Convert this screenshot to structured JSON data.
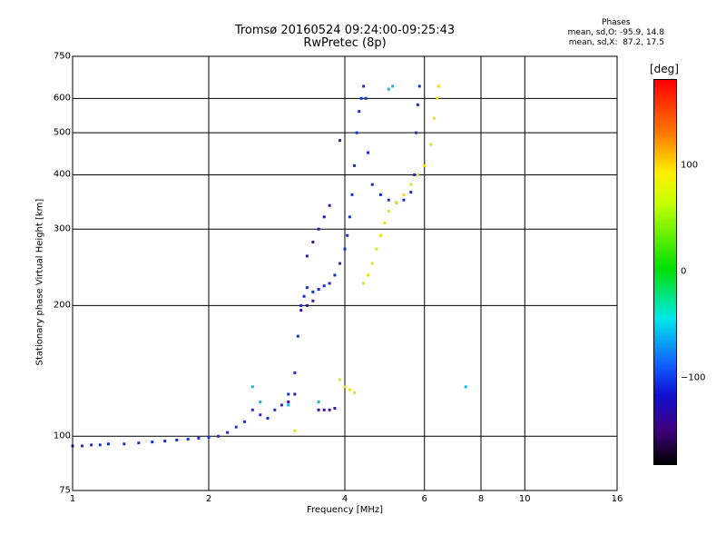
{
  "header": {
    "title": "Tromsø 20160524 09:24:00-09:25:43",
    "subtitle": "RwPretec (8p)"
  },
  "phase_info": {
    "heading": "Phases",
    "line_o": "mean, sd,O: -95.9, 14.8",
    "line_x": "mean, sd,X:  87.2, 17.5"
  },
  "colorbar": {
    "label": "[deg]",
    "ticks": [
      {
        "value": 100,
        "label": "100"
      },
      {
        "value": 0,
        "label": "0"
      },
      {
        "value": -100,
        "label": "−100"
      }
    ],
    "range": [
      -180,
      180
    ]
  },
  "colors": {
    "o_trace": "#1530d8",
    "o_dark": "#3a12a8",
    "x_trace": "#e8e010",
    "cyan": "#10b8e8"
  },
  "chart_data": {
    "type": "scatter",
    "title": "Tromsø 20160524 09:24:00-09:25:43",
    "subtitle": "RwPretec (8p)",
    "xlabel": "Frequency [MHz]",
    "ylabel": "Stationary phase Virtual Height [km]",
    "xscale": "log",
    "yscale": "log",
    "xlim": [
      1,
      16
    ],
    "ylim": [
      75,
      750
    ],
    "grid": true,
    "x_ticks": [
      {
        "value": 1,
        "label": "1"
      },
      {
        "value": 2,
        "label": "2"
      },
      {
        "value": 4,
        "label": "4"
      },
      {
        "value": 6,
        "label": "6"
      },
      {
        "value": 8,
        "label": "8"
      },
      {
        "value": 10,
        "label": "10"
      },
      {
        "value": 16,
        "label": "16"
      }
    ],
    "y_ticks": [
      {
        "value": 750,
        "label": "750"
      },
      {
        "value": 600,
        "label": "600"
      },
      {
        "value": 500,
        "label": "500"
      },
      {
        "value": 400,
        "label": "400"
      },
      {
        "value": 300,
        "label": "300"
      },
      {
        "value": 200,
        "label": "200"
      },
      {
        "value": 100,
        "label": "100"
      },
      {
        "value": 75,
        "label": "75"
      }
    ],
    "x_gridlines": [
      2,
      4,
      6,
      8,
      10
    ],
    "y_gridlines": [
      600,
      500,
      400,
      300,
      200,
      100
    ],
    "series": [
      {
        "color": "#1530d8",
        "points": [
          [
            1.0,
            95
          ],
          [
            1.05,
            95
          ],
          [
            1.1,
            95.5
          ],
          [
            1.15,
            95.5
          ],
          [
            1.2,
            96
          ],
          [
            1.3,
            96
          ],
          [
            1.4,
            96.5
          ],
          [
            1.5,
            97
          ],
          [
            1.6,
            97.5
          ],
          [
            1.7,
            98
          ],
          [
            1.8,
            98.5
          ],
          [
            1.9,
            99
          ],
          [
            2.0,
            99.5
          ],
          [
            2.1,
            100
          ],
          [
            2.2,
            102
          ],
          [
            2.3,
            105
          ],
          [
            2.4,
            108
          ],
          [
            2.5,
            115
          ],
          [
            2.6,
            112
          ],
          [
            2.7,
            110
          ],
          [
            2.8,
            115
          ],
          [
            2.9,
            118
          ],
          [
            3.0,
            125
          ],
          [
            3.1,
            140
          ],
          [
            3.15,
            170
          ],
          [
            3.2,
            200
          ],
          [
            3.25,
            210
          ],
          [
            3.3,
            220
          ],
          [
            3.4,
            215
          ],
          [
            3.5,
            218
          ],
          [
            3.6,
            222
          ],
          [
            3.7,
            225
          ],
          [
            3.8,
            235
          ],
          [
            3.9,
            250
          ],
          [
            4.0,
            270
          ],
          [
            4.05,
            290
          ],
          [
            4.1,
            320
          ],
          [
            4.15,
            360
          ],
          [
            4.2,
            420
          ],
          [
            4.25,
            500
          ],
          [
            4.3,
            560
          ],
          [
            4.35,
            600
          ],
          [
            4.4,
            640
          ],
          [
            4.45,
            600
          ],
          [
            4.5,
            450
          ],
          [
            4.6,
            380
          ],
          [
            4.8,
            360
          ],
          [
            5.0,
            350
          ],
          [
            5.2,
            345
          ],
          [
            5.4,
            350
          ],
          [
            5.6,
            365
          ],
          [
            5.7,
            400
          ],
          [
            5.75,
            500
          ],
          [
            5.8,
            580
          ],
          [
            5.85,
            640
          ]
        ]
      },
      {
        "color": "#3a12a8",
        "points": [
          [
            3.2,
            195
          ],
          [
            3.3,
            200
          ],
          [
            3.4,
            205
          ],
          [
            3.3,
            260
          ],
          [
            3.4,
            280
          ],
          [
            3.5,
            300
          ],
          [
            3.6,
            320
          ],
          [
            3.7,
            340
          ],
          [
            3.9,
            480
          ],
          [
            3.0,
            120
          ],
          [
            3.1,
            125
          ],
          [
            3.5,
            115
          ],
          [
            3.6,
            115
          ],
          [
            3.7,
            115
          ],
          [
            3.8,
            116
          ]
        ]
      },
      {
        "color": "#e8e010",
        "points": [
          [
            4.4,
            225
          ],
          [
            4.5,
            235
          ],
          [
            4.6,
            250
          ],
          [
            4.7,
            270
          ],
          [
            4.8,
            290
          ],
          [
            4.9,
            310
          ],
          [
            5.0,
            330
          ],
          [
            5.2,
            345
          ],
          [
            5.4,
            360
          ],
          [
            5.6,
            380
          ],
          [
            5.8,
            400
          ],
          [
            6.0,
            420
          ],
          [
            6.2,
            470
          ],
          [
            6.3,
            540
          ],
          [
            6.4,
            600
          ],
          [
            6.45,
            640
          ],
          [
            3.9,
            135
          ],
          [
            4.0,
            130
          ],
          [
            4.1,
            128
          ],
          [
            4.2,
            126
          ],
          [
            3.1,
            103
          ]
        ]
      },
      {
        "color": "#10b8e8",
        "points": [
          [
            2.5,
            130
          ],
          [
            2.6,
            120
          ],
          [
            3.0,
            118
          ],
          [
            3.5,
            120
          ],
          [
            5.0,
            630
          ],
          [
            5.1,
            640
          ],
          [
            7.4,
            130
          ]
        ]
      }
    ]
  }
}
